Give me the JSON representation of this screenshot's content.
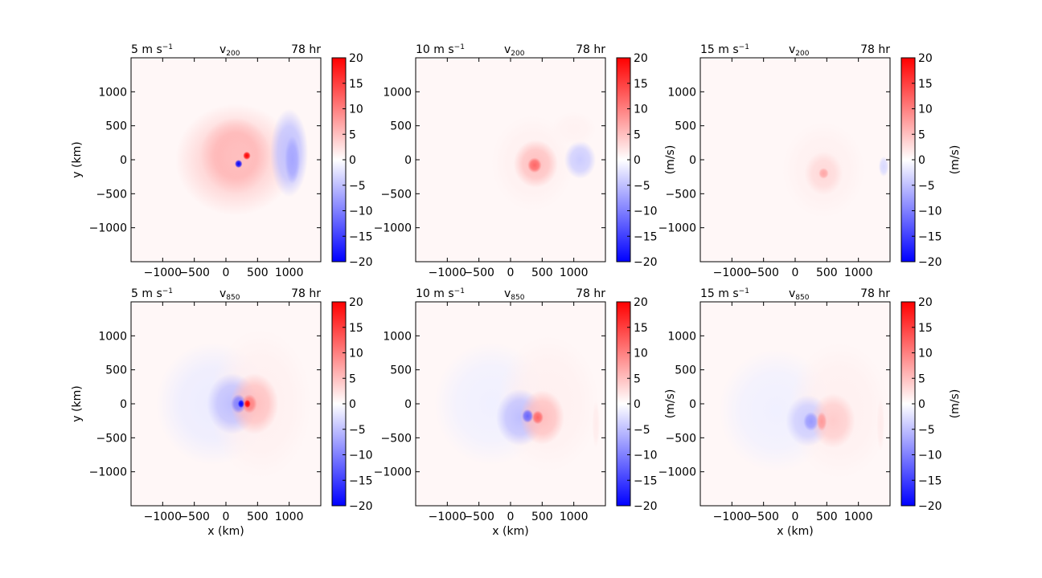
{
  "chart_data": [
    {
      "type": "heatmap",
      "speed_label": "5 m s",
      "speed_sup": "−1",
      "var_main": "v",
      "var_sub": "200",
      "time_label": "78 hr",
      "xlabel": "",
      "ylabel": "y (km)",
      "cbar_label": "",
      "xlim": [
        -1500,
        1500
      ],
      "ylim": [
        -1500,
        1500
      ],
      "xticks": [
        "−1000",
        "−500",
        "0",
        "500",
        "1000"
      ],
      "yticks": [
        "1000",
        "500",
        "0",
        "−500",
        "−1000"
      ],
      "cbar_ticks": [
        "20",
        "15",
        "10",
        "5",
        "0",
        "−5",
        "−10",
        "−15",
        "−20"
      ],
      "cbar_range": [
        -20,
        20
      ],
      "colormap": "bwr",
      "features": [
        {
          "x": 150,
          "y": 0,
          "rx": 950,
          "ry": 820,
          "v": 3.5
        },
        {
          "x": 150,
          "y": 60,
          "rx": 560,
          "ry": 560,
          "v": 6
        },
        {
          "x": 200,
          "y": 50,
          "rx": 320,
          "ry": 320,
          "v": 5
        },
        {
          "x": 1000,
          "y": 100,
          "rx": 300,
          "ry": 650,
          "v": -5
        },
        {
          "x": 1050,
          "y": 0,
          "rx": 120,
          "ry": 350,
          "v": -7
        },
        {
          "x": 330,
          "y": 60,
          "rx": 60,
          "ry": 60,
          "v": 22
        },
        {
          "x": 200,
          "y": -60,
          "rx": 60,
          "ry": 60,
          "v": -22
        }
      ]
    },
    {
      "type": "heatmap",
      "speed_label": "10 m s",
      "speed_sup": "−1",
      "var_main": "v",
      "var_sub": "200",
      "time_label": "78 hr",
      "xlabel": "",
      "ylabel": "",
      "cbar_label": "(m/s)",
      "xlim": [
        -1500,
        1500
      ],
      "ylim": [
        -1500,
        1500
      ],
      "xticks": [
        "−1000",
        "−500",
        "0",
        "500",
        "1000"
      ],
      "yticks": [
        "1000",
        "500",
        "0",
        "−500",
        "−1000"
      ],
      "cbar_ticks": [
        "20",
        "15",
        "10",
        "5",
        "0",
        "−5",
        "−10",
        "−15",
        "−20"
      ],
      "cbar_range": [
        -20,
        20
      ],
      "colormap": "bwr",
      "features": [
        {
          "x": 350,
          "y": -50,
          "rx": 650,
          "ry": 700,
          "v": 1.2
        },
        {
          "x": 400,
          "y": -60,
          "rx": 350,
          "ry": 350,
          "v": 5
        },
        {
          "x": 380,
          "y": -80,
          "rx": 110,
          "ry": 110,
          "v": 12
        },
        {
          "x": 1100,
          "y": 0,
          "rx": 250,
          "ry": 280,
          "v": -4
        },
        {
          "x": 1000,
          "y": 450,
          "rx": 350,
          "ry": 250,
          "v": 1
        }
      ]
    },
    {
      "type": "heatmap",
      "speed_label": "15 m s",
      "speed_sup": "−1",
      "var_main": "v",
      "var_sub": "200",
      "time_label": "78 hr",
      "xlabel": "",
      "ylabel": "",
      "cbar_label": "(m/s)",
      "xlim": [
        -1500,
        1500
      ],
      "ylim": [
        -1500,
        1500
      ],
      "xticks": [
        "−1000",
        "−500",
        "0",
        "500",
        "1000"
      ],
      "yticks": [
        "1000",
        "500",
        "0",
        "−500",
        "−1000"
      ],
      "cbar_ticks": [
        "20",
        "15",
        "10",
        "5",
        "0",
        "−5",
        "−10",
        "−15",
        "−20"
      ],
      "cbar_range": [
        -20,
        20
      ],
      "colormap": "bwr",
      "features": [
        {
          "x": 450,
          "y": -150,
          "rx": 650,
          "ry": 700,
          "v": 1.2
        },
        {
          "x": 450,
          "y": -200,
          "rx": 300,
          "ry": 320,
          "v": 3
        },
        {
          "x": 450,
          "y": -200,
          "rx": 80,
          "ry": 80,
          "v": 7
        },
        {
          "x": 1400,
          "y": -100,
          "rx": 80,
          "ry": 150,
          "v": -3
        }
      ]
    },
    {
      "type": "heatmap",
      "speed_label": "5 m s",
      "speed_sup": "−1",
      "var_main": "v",
      "var_sub": "850",
      "time_label": "78 hr",
      "xlabel": "x (km)",
      "ylabel": "y (km)",
      "cbar_label": "",
      "xlim": [
        -1500,
        1500
      ],
      "ylim": [
        -1500,
        1500
      ],
      "xticks": [
        "−1000",
        "−500",
        "0",
        "500",
        "1000"
      ],
      "yticks": [
        "1000",
        "500",
        "0",
        "−500",
        "−1000"
      ],
      "cbar_ticks": [
        "20",
        "15",
        "10",
        "5",
        "0",
        "−5",
        "−10",
        "−15",
        "−20"
      ],
      "cbar_range": [
        -20,
        20
      ],
      "colormap": "bwr",
      "features": [
        {
          "x": -200,
          "y": 0,
          "rx": 900,
          "ry": 900,
          "v": -1.5
        },
        {
          "x": 550,
          "y": 0,
          "rx": 800,
          "ry": 1100,
          "v": 1.2
        },
        {
          "x": 100,
          "y": 0,
          "rx": 400,
          "ry": 450,
          "v": -5
        },
        {
          "x": 450,
          "y": 0,
          "rx": 380,
          "ry": 450,
          "v": 5
        },
        {
          "x": 200,
          "y": 0,
          "rx": 120,
          "ry": 140,
          "v": -10
        },
        {
          "x": 370,
          "y": 0,
          "rx": 120,
          "ry": 140,
          "v": 10
        },
        {
          "x": 240,
          "y": 0,
          "rx": 50,
          "ry": 60,
          "v": -25
        },
        {
          "x": 340,
          "y": 0,
          "rx": 50,
          "ry": 60,
          "v": 25
        }
      ]
    },
    {
      "type": "heatmap",
      "speed_label": "10 m s",
      "speed_sup": "−1",
      "var_main": "v",
      "var_sub": "850",
      "time_label": "78 hr",
      "xlabel": "x (km)",
      "ylabel": "",
      "cbar_label": "(m/s)",
      "xlim": [
        -1500,
        1500
      ],
      "ylim": [
        -1500,
        1500
      ],
      "xticks": [
        "−1000",
        "−500",
        "0",
        "500",
        "1000"
      ],
      "yticks": [
        "1000",
        "500",
        "0",
        "−500",
        "−1000"
      ],
      "cbar_ticks": [
        "20",
        "15",
        "10",
        "5",
        "0",
        "−5",
        "−10",
        "−15",
        "−20"
      ],
      "cbar_range": [
        -20,
        20
      ],
      "colormap": "bwr",
      "features": [
        {
          "x": -300,
          "y": 0,
          "rx": 900,
          "ry": 900,
          "v": -1.2
        },
        {
          "x": 600,
          "y": 0,
          "rx": 800,
          "ry": 1000,
          "v": 1.2
        },
        {
          "x": 150,
          "y": -200,
          "rx": 380,
          "ry": 420,
          "v": -5
        },
        {
          "x": 500,
          "y": -200,
          "rx": 350,
          "ry": 400,
          "v": 5
        },
        {
          "x": 270,
          "y": -180,
          "rx": 90,
          "ry": 100,
          "v": -12
        },
        {
          "x": 430,
          "y": -200,
          "rx": 90,
          "ry": 100,
          "v": 12
        },
        {
          "x": 1350,
          "y": -300,
          "rx": 60,
          "ry": 350,
          "v": 1.5
        }
      ]
    },
    {
      "type": "heatmap",
      "speed_label": "15 m s",
      "speed_sup": "−1",
      "var_main": "v",
      "var_sub": "850",
      "time_label": "78 hr",
      "xlabel": "x (km)",
      "ylabel": "",
      "cbar_label": "(m/s)",
      "xlim": [
        -1500,
        1500
      ],
      "ylim": [
        -1500,
        1500
      ],
      "xticks": [
        "−1000",
        "−500",
        "0",
        "500",
        "1000"
      ],
      "yticks": [
        "1000",
        "500",
        "0",
        "−500",
        "−1000"
      ],
      "cbar_ticks": [
        "20",
        "15",
        "10",
        "5",
        "0",
        "−5",
        "−10",
        "−15",
        "−20"
      ],
      "cbar_range": [
        -20,
        20
      ],
      "colormap": "bwr",
      "features": [
        {
          "x": -300,
          "y": -100,
          "rx": 900,
          "ry": 900,
          "v": -1.2
        },
        {
          "x": 700,
          "y": -100,
          "rx": 800,
          "ry": 1000,
          "v": 1.2
        },
        {
          "x": 200,
          "y": -250,
          "rx": 350,
          "ry": 380,
          "v": -4
        },
        {
          "x": 600,
          "y": -250,
          "rx": 350,
          "ry": 400,
          "v": 4
        },
        {
          "x": 250,
          "y": -260,
          "rx": 120,
          "ry": 140,
          "v": -8
        },
        {
          "x": 420,
          "y": -260,
          "rx": 80,
          "ry": 140,
          "v": 8
        },
        {
          "x": 1350,
          "y": -300,
          "rx": 60,
          "ry": 400,
          "v": 1.5
        }
      ]
    }
  ]
}
